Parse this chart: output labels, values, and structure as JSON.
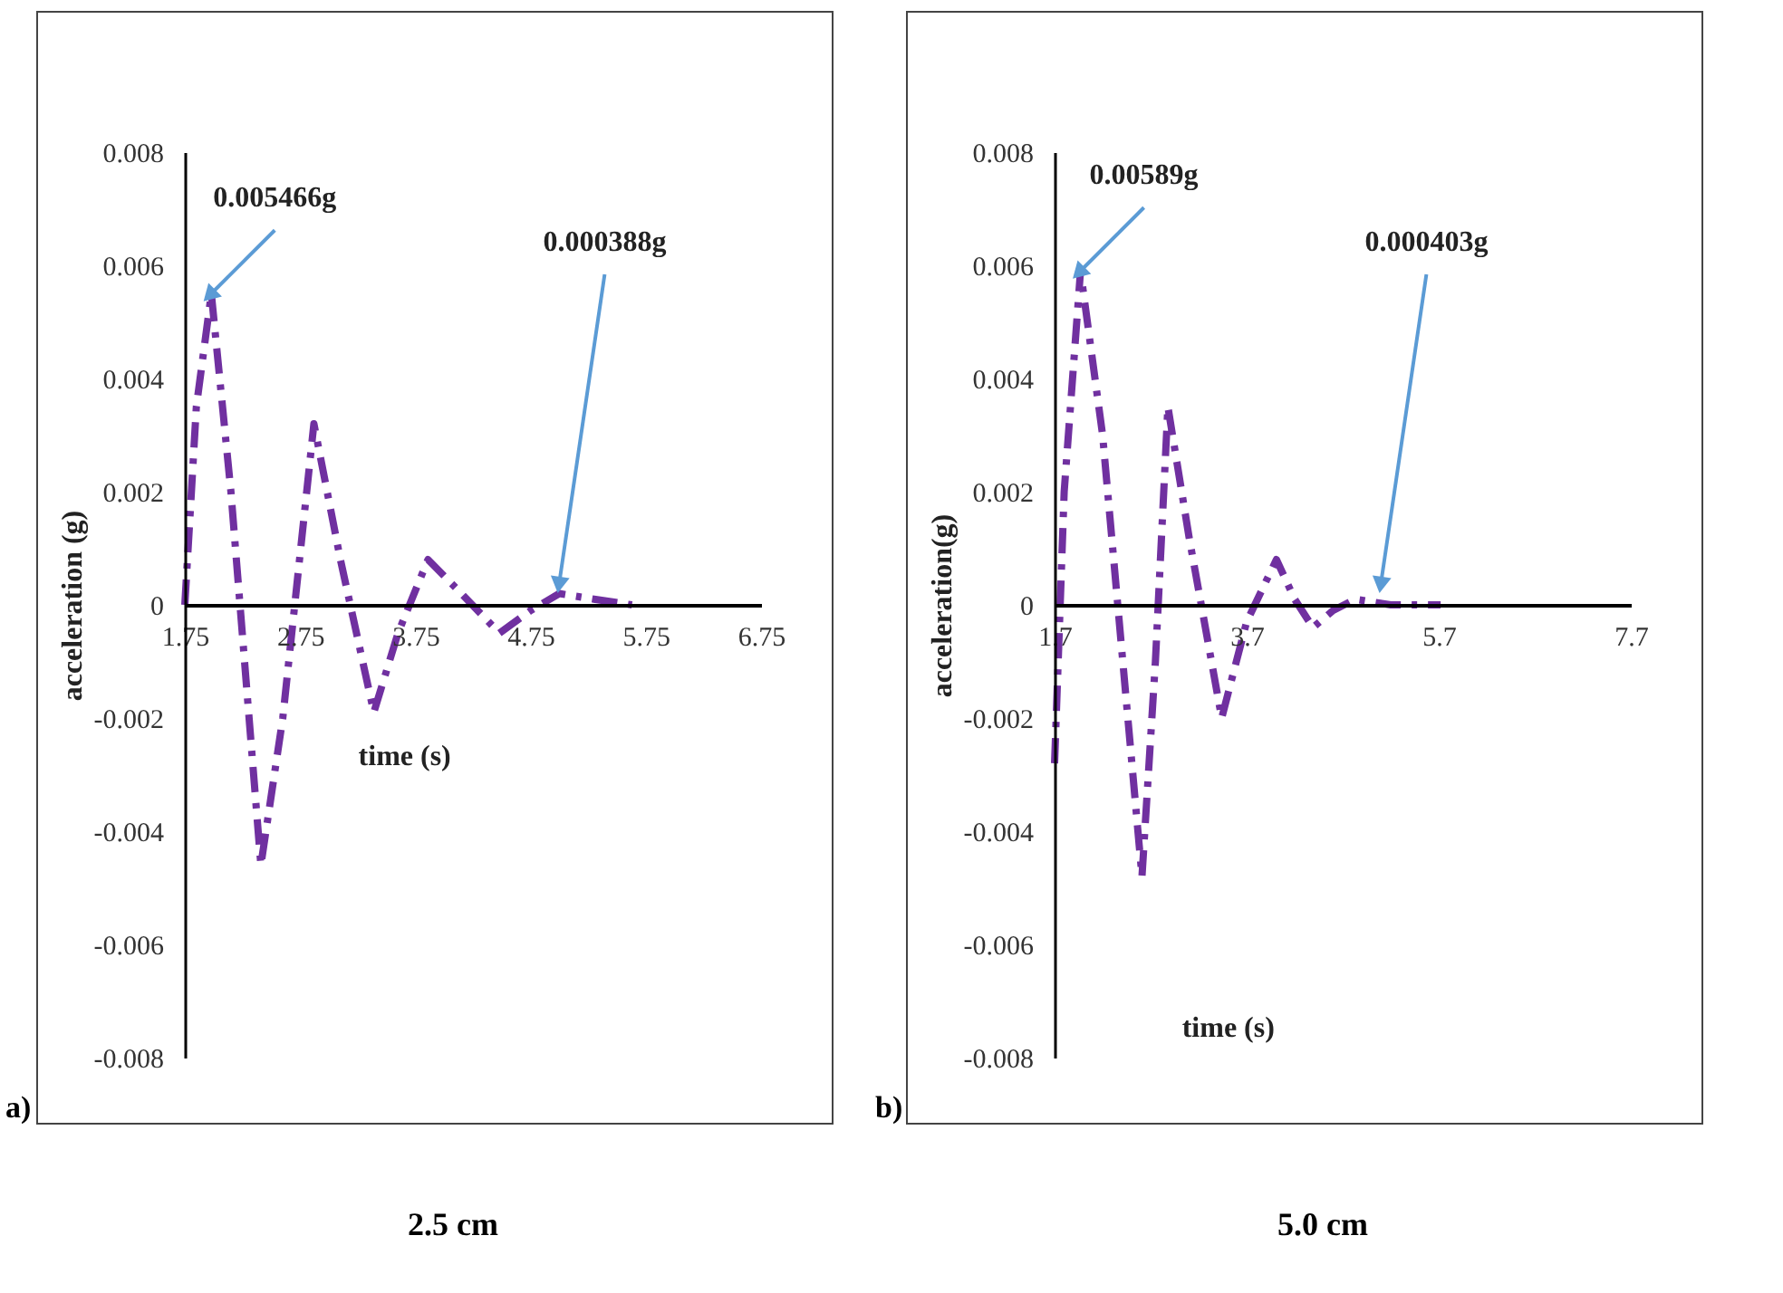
{
  "chart_data": [
    {
      "type": "line",
      "title": "2.5 cm",
      "xlabel": "time (s)",
      "ylabel": "acceleration (g)",
      "xlim": [
        1.75,
        6.75
      ],
      "xticks": [
        1.75,
        2.75,
        3.75,
        4.75,
        5.75,
        6.75
      ],
      "ylim": [
        -0.008,
        0.008
      ],
      "yticks": [
        -0.008,
        -0.006,
        -0.004,
        -0.002,
        0,
        0.002,
        0.004,
        0.006,
        0.008
      ],
      "marker": "none",
      "line_style": "dashed",
      "x": [
        1.75,
        1.85,
        1.98,
        2.15,
        2.41,
        2.6,
        2.87,
        3.1,
        3.39,
        3.6,
        3.86,
        4.15,
        4.48,
        4.75,
        5.0,
        5.3,
        5.63
      ],
      "series": [
        {
          "color": "#7030a0",
          "values": [
            0,
            0.0035,
            0.0055,
            0.002,
            -0.0046,
            -0.002,
            0.0032,
            0.0008,
            -0.0019,
            -0.0005,
            0.0008,
            0.0002,
            -0.0005,
            -0.0001,
            0.0002,
            0.0001,
            0
          ]
        }
      ],
      "annotations": [
        {
          "text": "0.005466g",
          "x": 1.98,
          "y": 0.0055
        },
        {
          "text": "0.000388g",
          "x": 5.0,
          "y": 0.0004
        },
        "a)"
      ]
    },
    {
      "type": "line",
      "title": "5.0 cm",
      "xlabel": "time (s)",
      "ylabel": "acceleration(g)",
      "xlim": [
        1.7,
        7.7
      ],
      "xticks": [
        1.7,
        3.7,
        5.7,
        7.7
      ],
      "ylim": [
        -0.008,
        0.008
      ],
      "yticks": [
        -0.008,
        -0.006,
        -0.004,
        -0.002,
        0,
        0.002,
        0.004,
        0.006,
        0.008
      ],
      "marker": "none",
      "line_style": "dashed",
      "x": [
        1.7,
        1.8,
        1.97,
        2.2,
        2.61,
        2.75,
        2.88,
        3.1,
        3.44,
        3.7,
        4.01,
        4.2,
        4.39,
        4.6,
        4.83,
        5.2,
        5.72
      ],
      "series": [
        {
          "color": "#7030a0",
          "values": [
            -0.0028,
            0.002,
            0.0059,
            0.003,
            -0.0048,
            -0.001,
            0.0035,
            0.0012,
            -0.002,
            -0.0003,
            0.0008,
            0.0001,
            -0.0004,
            -0.0001,
            0.0001,
            0,
            0
          ]
        }
      ],
      "annotations": [
        {
          "text": "0.00589g",
          "x": 1.97,
          "y": 0.0059
        },
        {
          "text": "0.000403g",
          "x": 5.1,
          "y": 0.0004
        },
        "b)"
      ]
    }
  ]
}
